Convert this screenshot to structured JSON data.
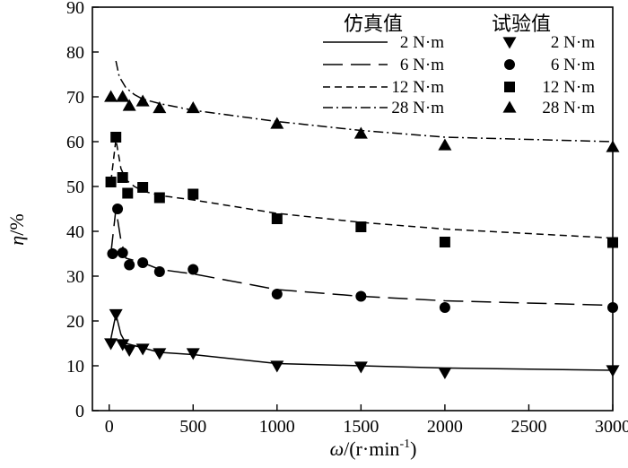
{
  "chart_data": {
    "type": "line",
    "title": "",
    "xlabel": {
      "symbol": "ω",
      "rest": "/(r·min",
      "sup": "-1",
      "close": ")"
    },
    "ylabel": {
      "symbol": "η",
      "rest": "/%"
    },
    "xlim": [
      -100,
      3000
    ],
    "ylim": [
      0,
      90
    ],
    "x_ticks": [
      0,
      500,
      1000,
      1500,
      2000,
      2500,
      3000
    ],
    "y_ticks": [
      0,
      10,
      20,
      30,
      40,
      50,
      60,
      70,
      80,
      90
    ],
    "grid": false,
    "legend": {
      "placement": "top-right",
      "sim_header": "仿真值",
      "exp_header": "试验值"
    },
    "simulated": [
      {
        "name": "2 N·m",
        "dash": "none",
        "x": [
          10,
          40,
          70,
          100,
          150,
          200,
          300,
          500,
          1000,
          1500,
          2000,
          3000
        ],
        "y": [
          16.0,
          21.5,
          17.0,
          15.0,
          14.5,
          14.0,
          13.0,
          12.5,
          10.5,
          10.0,
          9.5,
          9.0
        ]
      },
      {
        "name": "6 N·m",
        "dash": "long",
        "x": [
          10,
          40,
          70,
          100,
          150,
          200,
          300,
          500,
          1000,
          1500,
          2000,
          3000
        ],
        "y": [
          35.0,
          45.0,
          38.0,
          34.0,
          33.5,
          33.0,
          31.5,
          30.5,
          27.0,
          25.5,
          24.5,
          23.5
        ]
      },
      {
        "name": "12 N·m",
        "dash": "short",
        "x": [
          10,
          40,
          70,
          100,
          150,
          200,
          300,
          500,
          1000,
          1500,
          2000,
          3000
        ],
        "y": [
          51.0,
          60.5,
          54.0,
          51.5,
          50.0,
          49.0,
          48.0,
          47.0,
          44.0,
          42.0,
          40.5,
          38.5
        ]
      },
      {
        "name": "28 N·m",
        "dash": "dashdot",
        "x": [
          40,
          60,
          100,
          150,
          200,
          300,
          500,
          1000,
          1500,
          2000,
          3000
        ],
        "y": [
          78.0,
          74.5,
          72.0,
          70.5,
          69.5,
          68.5,
          67.0,
          64.5,
          62.5,
          61.0,
          60.0
        ]
      }
    ],
    "experimental": [
      {
        "name": "2 N·m",
        "marker": "triangle-down",
        "x": [
          10,
          40,
          80,
          120,
          200,
          300,
          500,
          1000,
          1500,
          2000,
          3000
        ],
        "y": [
          15.0,
          21.5,
          14.8,
          13.5,
          13.8,
          12.8,
          12.8,
          10.0,
          9.8,
          8.5,
          9.0
        ]
      },
      {
        "name": "6 N·m",
        "marker": "circle",
        "x": [
          20,
          50,
          80,
          120,
          200,
          300,
          500,
          1000,
          1500,
          2000,
          3000
        ],
        "y": [
          35.0,
          45.0,
          35.2,
          32.5,
          33.0,
          31.0,
          31.5,
          26.0,
          25.5,
          23.0,
          23.0
        ]
      },
      {
        "name": "12 N·m",
        "marker": "square",
        "x": [
          10,
          40,
          80,
          110,
          200,
          300,
          500,
          1000,
          1500,
          2000,
          3000
        ],
        "y": [
          51.0,
          61.0,
          52.0,
          48.5,
          49.8,
          47.5,
          48.3,
          42.8,
          41.0,
          37.6,
          37.5
        ]
      },
      {
        "name": "28 N·m",
        "marker": "triangle-up",
        "x": [
          10,
          80,
          120,
          200,
          300,
          500,
          1000,
          1500,
          2000,
          3000
        ],
        "y": [
          70.0,
          70.0,
          68.0,
          69.0,
          67.5,
          67.5,
          64.0,
          61.8,
          59.2,
          58.8
        ]
      }
    ]
  }
}
